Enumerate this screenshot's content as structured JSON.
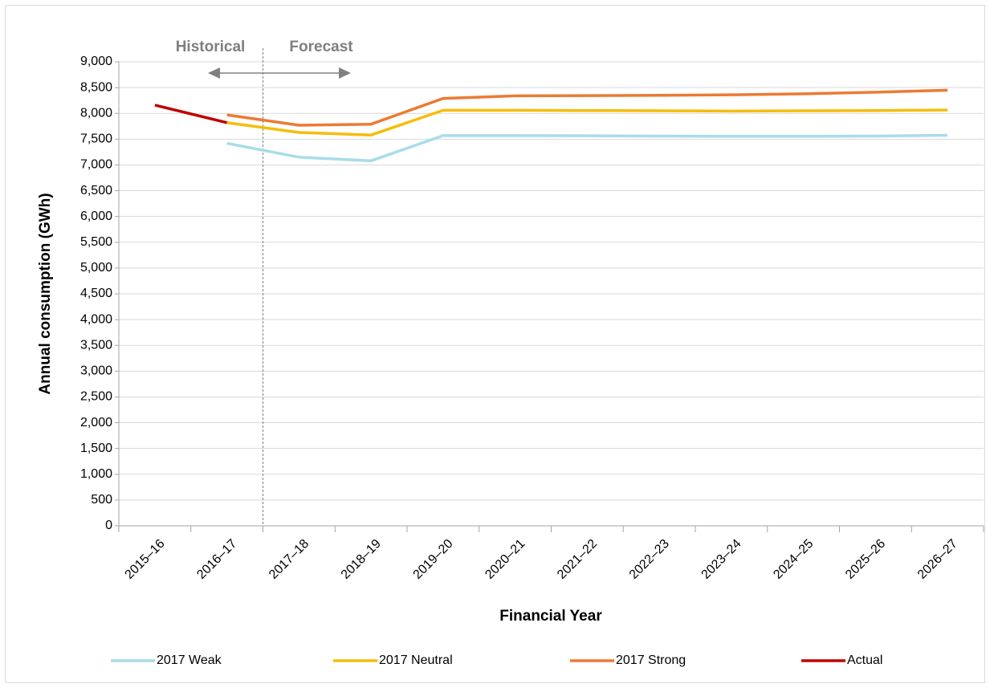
{
  "chart_data": {
    "type": "line",
    "x_label": "Financial Year",
    "y_label": "Annual consumption (GWh)",
    "annotations": [
      "Historical",
      "Forecast"
    ],
    "categories": [
      "2015–16",
      "2016–17",
      "2017–18",
      "2018–19",
      "2019–20",
      "2020–21",
      "2021–22",
      "2022–23",
      "2023–24",
      "2024–25",
      "2025–26",
      "2026–27"
    ],
    "series": [
      {
        "name": "2017 Weak",
        "color": "#a9dce9",
        "values": [
          null,
          7420,
          7150,
          7080,
          7570,
          7570,
          7565,
          7560,
          7555,
          7555,
          7560,
          7575
        ]
      },
      {
        "name": "2017 Neutral",
        "color": "#f5bd0b",
        "values": [
          null,
          7820,
          7630,
          7580,
          8060,
          8060,
          8055,
          8050,
          8045,
          8050,
          8055,
          8065
        ]
      },
      {
        "name": "2017 Strong",
        "color": "#ec7a33",
        "values": [
          null,
          7970,
          7770,
          7790,
          8290,
          8340,
          8345,
          8350,
          8360,
          8380,
          8410,
          8450
        ]
      },
      {
        "name": "Actual",
        "color": "#c00000",
        "values": [
          8160,
          7820,
          null,
          null,
          null,
          null,
          null,
          null,
          null,
          null,
          null,
          null
        ]
      }
    ],
    "ylim": [
      0,
      9000
    ],
    "yticks": [
      0,
      500,
      {
        "value": 1000,
        "label": "1,000"
      },
      {
        "value": 1500,
        "label": "1,500"
      },
      {
        "value": 2000,
        "label": "2,000"
      },
      {
        "value": 2500,
        "label": "2,500"
      },
      {
        "value": 3000,
        "label": "3,000"
      },
      {
        "value": 3500,
        "label": "3,500"
      },
      {
        "value": 4000,
        "label": "4,000"
      },
      {
        "value": 4500,
        "label": "4,500"
      },
      {
        "value": 5000,
        "label": "5,000"
      },
      {
        "value": 5500,
        "label": "5,500"
      },
      {
        "value": 6000,
        "label": "6,000"
      },
      {
        "value": 6500,
        "label": "6,500"
      },
      {
        "value": 7000,
        "label": "7,000"
      },
      {
        "value": 7500,
        "label": "7,500"
      },
      {
        "value": 8000,
        "label": "8,000"
      },
      {
        "value": 8500,
        "label": "8,500"
      },
      {
        "value": 9000,
        "label": "9,000"
      }
    ],
    "grid": true,
    "legend": "bottom"
  }
}
